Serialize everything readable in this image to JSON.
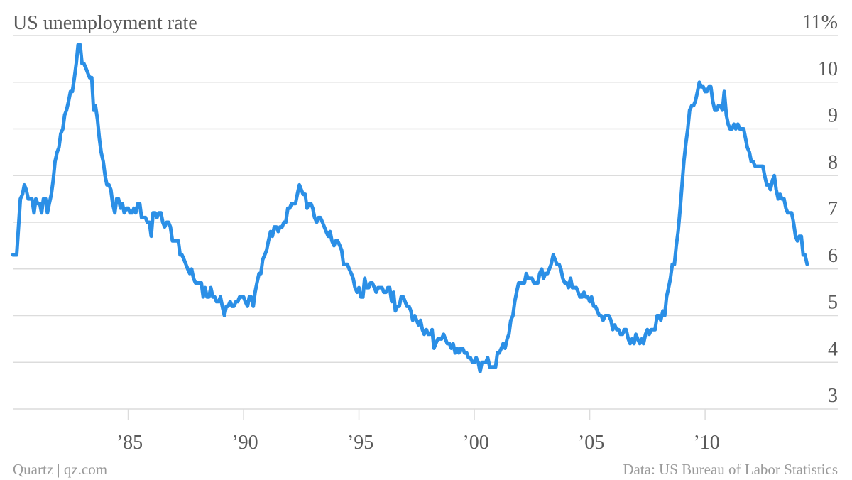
{
  "chart_data": {
    "type": "line",
    "title": "US unemployment rate",
    "credit": "Quartz | qz.com",
    "source": "Data: US Bureau of Labor Statistics",
    "color": "#2b8fe6",
    "grid": true,
    "xlim": [
      1980,
      2015.75
    ],
    "ylim": [
      3,
      11
    ],
    "xticks": [
      {
        "value": 1985,
        "label": "’85"
      },
      {
        "value": 1990,
        "label": "’90"
      },
      {
        "value": 1995,
        "label": "’95"
      },
      {
        "value": 2000,
        "label": "’00"
      },
      {
        "value": 2005,
        "label": "’05"
      },
      {
        "value": 2010,
        "label": "’10"
      }
    ],
    "yticks": [
      3,
      4,
      5,
      6,
      7,
      8,
      9,
      10,
      {
        "value": 11,
        "label": "11%"
      }
    ],
    "x": [
      1980,
      1980.08,
      1980.17,
      1980.25,
      1980.33,
      1980.42,
      1980.5,
      1980.58,
      1980.67,
      1980.75,
      1980.83,
      1980.92,
      1981,
      1981.08,
      1981.17,
      1981.25,
      1981.33,
      1981.42,
      1981.5,
      1981.58,
      1981.67,
      1981.75,
      1981.83,
      1981.92,
      1982,
      1982.08,
      1982.17,
      1982.25,
      1982.33,
      1982.42,
      1982.5,
      1982.58,
      1982.67,
      1982.75,
      1982.83,
      1982.92,
      1983,
      1983.08,
      1983.17,
      1983.25,
      1983.33,
      1983.42,
      1983.5,
      1983.58,
      1983.67,
      1983.75,
      1983.83,
      1983.92,
      1984,
      1984.08,
      1984.17,
      1984.25,
      1984.33,
      1984.42,
      1984.5,
      1984.58,
      1984.67,
      1984.75,
      1984.83,
      1984.92,
      1985,
      1985.08,
      1985.17,
      1985.25,
      1985.33,
      1985.42,
      1985.5,
      1985.58,
      1985.67,
      1985.75,
      1985.83,
      1985.92,
      1986,
      1986.08,
      1986.17,
      1986.25,
      1986.33,
      1986.42,
      1986.5,
      1986.58,
      1986.67,
      1986.75,
      1986.83,
      1986.92,
      1987,
      1987.08,
      1987.17,
      1987.25,
      1987.33,
      1987.42,
      1987.5,
      1987.58,
      1987.67,
      1987.75,
      1987.83,
      1987.92,
      1988,
      1988.08,
      1988.17,
      1988.25,
      1988.33,
      1988.42,
      1988.5,
      1988.58,
      1988.67,
      1988.75,
      1988.83,
      1988.92,
      1989,
      1989.08,
      1989.17,
      1989.25,
      1989.33,
      1989.42,
      1989.5,
      1989.58,
      1989.67,
      1989.75,
      1989.83,
      1989.92,
      1990,
      1990.08,
      1990.17,
      1990.25,
      1990.33,
      1990.42,
      1990.5,
      1990.58,
      1990.67,
      1990.75,
      1990.83,
      1990.92,
      1991,
      1991.08,
      1991.17,
      1991.25,
      1991.33,
      1991.42,
      1991.5,
      1991.58,
      1991.67,
      1991.75,
      1991.83,
      1991.92,
      1992,
      1992.08,
      1992.17,
      1992.25,
      1992.33,
      1992.42,
      1992.5,
      1992.58,
      1992.67,
      1992.75,
      1992.83,
      1992.92,
      1993,
      1993.08,
      1993.17,
      1993.25,
      1993.33,
      1993.42,
      1993.5,
      1993.58,
      1993.67,
      1993.75,
      1993.83,
      1993.92,
      1994,
      1994.08,
      1994.17,
      1994.25,
      1994.33,
      1994.42,
      1994.5,
      1994.58,
      1994.67,
      1994.75,
      1994.83,
      1994.92,
      1995,
      1995.08,
      1995.17,
      1995.25,
      1995.33,
      1995.42,
      1995.5,
      1995.58,
      1995.67,
      1995.75,
      1995.83,
      1995.92,
      1996,
      1996.08,
      1996.17,
      1996.25,
      1996.33,
      1996.42,
      1996.5,
      1996.58,
      1996.67,
      1996.75,
      1996.83,
      1996.92,
      1997,
      1997.08,
      1997.17,
      1997.25,
      1997.33,
      1997.42,
      1997.5,
      1997.58,
      1997.67,
      1997.75,
      1997.83,
      1997.92,
      1998,
      1998.08,
      1998.17,
      1998.25,
      1998.33,
      1998.42,
      1998.5,
      1998.58,
      1998.67,
      1998.75,
      1998.83,
      1998.92,
      1999,
      1999.08,
      1999.17,
      1999.25,
      1999.33,
      1999.42,
      1999.5,
      1999.58,
      1999.67,
      1999.75,
      1999.83,
      1999.92,
      2000,
      2000.08,
      2000.17,
      2000.25,
      2000.33,
      2000.42,
      2000.5,
      2000.58,
      2000.67,
      2000.75,
      2000.83,
      2000.92,
      2001,
      2001.08,
      2001.17,
      2001.25,
      2001.33,
      2001.42,
      2001.5,
      2001.58,
      2001.67,
      2001.75,
      2001.83,
      2001.92,
      2002,
      2002.08,
      2002.17,
      2002.25,
      2002.33,
      2002.42,
      2002.5,
      2002.58,
      2002.67,
      2002.75,
      2002.83,
      2002.92,
      2003,
      2003.08,
      2003.17,
      2003.25,
      2003.33,
      2003.42,
      2003.5,
      2003.58,
      2003.67,
      2003.75,
      2003.83,
      2003.92,
      2004,
      2004.08,
      2004.17,
      2004.25,
      2004.33,
      2004.42,
      2004.5,
      2004.58,
      2004.67,
      2004.75,
      2004.83,
      2004.92,
      2005,
      2005.08,
      2005.17,
      2005.25,
      2005.33,
      2005.42,
      2005.5,
      2005.58,
      2005.67,
      2005.75,
      2005.83,
      2005.92,
      2006,
      2006.08,
      2006.17,
      2006.25,
      2006.33,
      2006.42,
      2006.5,
      2006.58,
      2006.67,
      2006.75,
      2006.83,
      2006.92,
      2007,
      2007.08,
      2007.17,
      2007.25,
      2007.33,
      2007.42,
      2007.5,
      2007.58,
      2007.67,
      2007.75,
      2007.83,
      2007.92,
      2008,
      2008.08,
      2008.17,
      2008.25,
      2008.33,
      2008.42,
      2008.5,
      2008.58,
      2008.67,
      2008.75,
      2008.83,
      2008.92,
      2009,
      2009.08,
      2009.17,
      2009.25,
      2009.33,
      2009.42,
      2009.5,
      2009.58,
      2009.67,
      2009.75,
      2009.83,
      2009.92,
      2010,
      2010.08,
      2010.17,
      2010.25,
      2010.33,
      2010.42,
      2010.5,
      2010.58,
      2010.67,
      2010.75,
      2010.83,
      2010.92,
      2011,
      2011.08,
      2011.17,
      2011.25,
      2011.33,
      2011.42,
      2011.5,
      2011.58,
      2011.67,
      2011.75,
      2011.83,
      2011.92,
      2012,
      2012.08,
      2012.17,
      2012.25,
      2012.33,
      2012.42,
      2012.5,
      2012.58,
      2012.67,
      2012.75,
      2012.83,
      2012.92,
      2013,
      2013.08,
      2013.17,
      2013.25,
      2013.33,
      2013.42,
      2013.5,
      2013.58,
      2013.67,
      2013.75,
      2013.83,
      2013.92,
      2014,
      2014.08,
      2014.17,
      2014.25,
      2014.33,
      2014.42
    ],
    "values": [
      6.3,
      6.3,
      6.3,
      6.9,
      7.5,
      7.6,
      7.8,
      7.7,
      7.5,
      7.5,
      7.5,
      7.2,
      7.5,
      7.4,
      7.4,
      7.2,
      7.5,
      7.5,
      7.2,
      7.4,
      7.6,
      7.9,
      8.3,
      8.5,
      8.6,
      8.9,
      9.0,
      9.3,
      9.4,
      9.6,
      9.8,
      9.8,
      10.1,
      10.4,
      10.8,
      10.8,
      10.4,
      10.4,
      10.3,
      10.2,
      10.1,
      10.1,
      9.4,
      9.5,
      9.2,
      8.8,
      8.5,
      8.3,
      8.0,
      7.8,
      7.8,
      7.7,
      7.4,
      7.2,
      7.5,
      7.5,
      7.3,
      7.4,
      7.2,
      7.3,
      7.3,
      7.2,
      7.2,
      7.3,
      7.2,
      7.4,
      7.4,
      7.1,
      7.1,
      7.1,
      7.0,
      7.0,
      6.7,
      7.2,
      7.2,
      7.1,
      7.2,
      7.2,
      7.0,
      6.9,
      7.0,
      7.0,
      6.9,
      6.6,
      6.6,
      6.6,
      6.6,
      6.3,
      6.3,
      6.2,
      6.1,
      6.0,
      5.9,
      6.0,
      5.8,
      5.7,
      5.7,
      5.7,
      5.7,
      5.4,
      5.6,
      5.4,
      5.4,
      5.6,
      5.4,
      5.4,
      5.3,
      5.3,
      5.4,
      5.2,
      5.0,
      5.2,
      5.2,
      5.3,
      5.2,
      5.2,
      5.3,
      5.3,
      5.4,
      5.4,
      5.4,
      5.3,
      5.2,
      5.4,
      5.4,
      5.2,
      5.5,
      5.7,
      5.9,
      5.9,
      6.2,
      6.3,
      6.4,
      6.6,
      6.8,
      6.7,
      6.9,
      6.9,
      6.8,
      6.9,
      6.9,
      7.0,
      7.0,
      7.3,
      7.3,
      7.4,
      7.4,
      7.4,
      7.6,
      7.8,
      7.7,
      7.6,
      7.6,
      7.3,
      7.4,
      7.4,
      7.3,
      7.1,
      7.0,
      7.1,
      7.1,
      7.0,
      6.9,
      6.8,
      6.7,
      6.8,
      6.6,
      6.5,
      6.6,
      6.6,
      6.5,
      6.4,
      6.1,
      6.1,
      6.1,
      6.0,
      5.9,
      5.8,
      5.6,
      5.5,
      5.6,
      5.4,
      5.4,
      5.8,
      5.6,
      5.6,
      5.7,
      5.7,
      5.6,
      5.5,
      5.6,
      5.6,
      5.6,
      5.5,
      5.5,
      5.6,
      5.6,
      5.3,
      5.5,
      5.1,
      5.2,
      5.2,
      5.4,
      5.4,
      5.3,
      5.2,
      5.2,
      5.1,
      4.9,
      5.0,
      4.9,
      4.8,
      4.9,
      4.7,
      4.6,
      4.7,
      4.6,
      4.6,
      4.7,
      4.3,
      4.4,
      4.5,
      4.5,
      4.5,
      4.6,
      4.5,
      4.4,
      4.4,
      4.3,
      4.4,
      4.2,
      4.3,
      4.2,
      4.3,
      4.3,
      4.2,
      4.2,
      4.1,
      4.1,
      4.0,
      4.0,
      4.1,
      4.0,
      3.8,
      4.0,
      4.0,
      4.0,
      4.1,
      3.9,
      3.9,
      3.9,
      3.9,
      4.2,
      4.2,
      4.3,
      4.4,
      4.3,
      4.5,
      4.6,
      4.9,
      5.0,
      5.3,
      5.5,
      5.7,
      5.7,
      5.7,
      5.7,
      5.9,
      5.8,
      5.8,
      5.8,
      5.7,
      5.7,
      5.7,
      5.9,
      6.0,
      5.8,
      5.9,
      5.9,
      6.0,
      6.1,
      6.3,
      6.2,
      6.1,
      6.1,
      6.0,
      5.8,
      5.7,
      5.7,
      5.6,
      5.8,
      5.6,
      5.6,
      5.6,
      5.5,
      5.4,
      5.4,
      5.5,
      5.4,
      5.4,
      5.3,
      5.4,
      5.2,
      5.2,
      5.1,
      5.0,
      5.0,
      4.9,
      5.0,
      5.0,
      5.0,
      4.9,
      4.7,
      4.8,
      4.7,
      4.7,
      4.6,
      4.6,
      4.7,
      4.7,
      4.5,
      4.4,
      4.5,
      4.4,
      4.6,
      4.5,
      4.4,
      4.5,
      4.4,
      4.6,
      4.7,
      4.6,
      4.7,
      4.7,
      4.7,
      5.0,
      5.0,
      4.9,
      5.1,
      5.0,
      5.4,
      5.6,
      5.8,
      6.1,
      6.1,
      6.5,
      6.8,
      7.3,
      7.8,
      8.3,
      8.7,
      9.0,
      9.4,
      9.5,
      9.5,
      9.6,
      9.8,
      10.0,
      9.9,
      9.9,
      9.8,
      9.8,
      9.9,
      9.9,
      9.6,
      9.4,
      9.4,
      9.5,
      9.5,
      9.4,
      9.8,
      9.3,
      9.1,
      9.0,
      9.0,
      9.1,
      9.0,
      9.1,
      9.0,
      9.0,
      9.0,
      8.8,
      8.6,
      8.5,
      8.3,
      8.3,
      8.2,
      8.2,
      8.2,
      8.2,
      8.2,
      8.0,
      7.8,
      7.8,
      7.7,
      7.9,
      8.0,
      7.7,
      7.5,
      7.6,
      7.5,
      7.5,
      7.3,
      7.2,
      7.2,
      7.2,
      7.0,
      6.7,
      6.6,
      6.7,
      6.7,
      6.3,
      6.3,
      6.1
    ]
  }
}
